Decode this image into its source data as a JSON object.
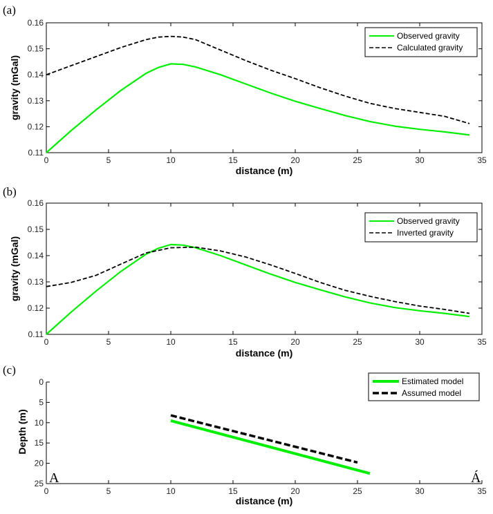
{
  "chart_data": [
    {
      "type": "line",
      "panel_label": "(a)",
      "xlabel": "distance (m)",
      "ylabel": "gravity (mGal)",
      "xlim": [
        0,
        35
      ],
      "ylim": [
        0.11,
        0.16
      ],
      "xticks": [
        "0",
        "5",
        "10",
        "15",
        "20",
        "25",
        "30",
        "35"
      ],
      "yticks": [
        "0.11",
        "0.12",
        "0.13",
        "0.14",
        "0.15",
        "0.16"
      ],
      "legend_position": "top-right",
      "series": [
        {
          "name": "Observed gravity",
          "color": "#00ee00",
          "style": "solid",
          "x": [
            0,
            2,
            4,
            6,
            8,
            9,
            10,
            11,
            12,
            14,
            16,
            18,
            20,
            22,
            24,
            26,
            28,
            30,
            32,
            34
          ],
          "y": [
            0.11,
            0.1185,
            0.1265,
            0.134,
            0.1405,
            0.1428,
            0.1442,
            0.144,
            0.143,
            0.14,
            0.1365,
            0.133,
            0.1298,
            0.127,
            0.1243,
            0.122,
            0.1202,
            0.119,
            0.118,
            0.1168
          ]
        },
        {
          "name": "Calculated gravity",
          "color": "#000000",
          "style": "dashed",
          "x": [
            0,
            2,
            4,
            6,
            8,
            9,
            10,
            11,
            12,
            13,
            14,
            16,
            18,
            20,
            22,
            24,
            26,
            28,
            30,
            32,
            34
          ],
          "y": [
            0.14,
            0.1435,
            0.147,
            0.1505,
            0.1535,
            0.1545,
            0.1548,
            0.1545,
            0.1535,
            0.1515,
            0.1495,
            0.1455,
            0.1418,
            0.1385,
            0.135,
            0.1318,
            0.129,
            0.127,
            0.1255,
            0.124,
            0.1212
          ]
        }
      ]
    },
    {
      "type": "line",
      "panel_label": "(b)",
      "xlabel": "distance (m)",
      "ylabel": "gravity (mGal)",
      "xlim": [
        0,
        35
      ],
      "ylim": [
        0.11,
        0.16
      ],
      "xticks": [
        "0",
        "5",
        "10",
        "15",
        "20",
        "25",
        "30",
        "35"
      ],
      "yticks": [
        "0.11",
        "0.12",
        "0.13",
        "0.14",
        "0.15",
        "0.16"
      ],
      "legend_position": "top-right",
      "series": [
        {
          "name": "Observed gravity",
          "color": "#00ee00",
          "style": "solid",
          "x": [
            0,
            2,
            4,
            6,
            8,
            9,
            10,
            11,
            12,
            14,
            16,
            18,
            20,
            22,
            24,
            26,
            28,
            30,
            32,
            34
          ],
          "y": [
            0.11,
            0.1185,
            0.1265,
            0.134,
            0.1405,
            0.1428,
            0.1442,
            0.144,
            0.143,
            0.14,
            0.1365,
            0.133,
            0.1298,
            0.127,
            0.1243,
            0.122,
            0.1202,
            0.119,
            0.118,
            0.1168
          ]
        },
        {
          "name": "Inverted  gravity",
          "color": "#000000",
          "style": "dashed",
          "x": [
            0,
            2,
            4,
            6,
            8,
            10,
            12,
            14,
            16,
            18,
            20,
            22,
            24,
            26,
            28,
            30,
            32,
            34
          ],
          "y": [
            0.1282,
            0.1298,
            0.1325,
            0.1368,
            0.141,
            0.143,
            0.1432,
            0.1418,
            0.1395,
            0.1365,
            0.1332,
            0.1298,
            0.1268,
            0.1245,
            0.1225,
            0.1208,
            0.1195,
            0.118
          ]
        }
      ]
    },
    {
      "type": "line",
      "panel_label": "(c)",
      "xlabel": "distance (m)",
      "ylabel": "Depth (m)",
      "xlim": [
        0,
        35
      ],
      "ylim": [
        0,
        25
      ],
      "y_reversed": true,
      "xticks": [
        "0",
        "5",
        "10",
        "15",
        "20",
        "25",
        "30",
        "35"
      ],
      "yticks": [
        "0",
        "5",
        "10",
        "15",
        "20",
        "25"
      ],
      "legend_position": "top-right",
      "corner_labels": [
        "A",
        "Á"
      ],
      "series": [
        {
          "name": "Estimated model",
          "color": "#00ee00",
          "style": "solid",
          "x": [
            10,
            26
          ],
          "y": [
            9.5,
            22.5
          ]
        },
        {
          "name": "Assumed model",
          "color": "#000000",
          "style": "dashed",
          "x": [
            10,
            25
          ],
          "y": [
            8.2,
            19.8
          ]
        }
      ]
    }
  ]
}
